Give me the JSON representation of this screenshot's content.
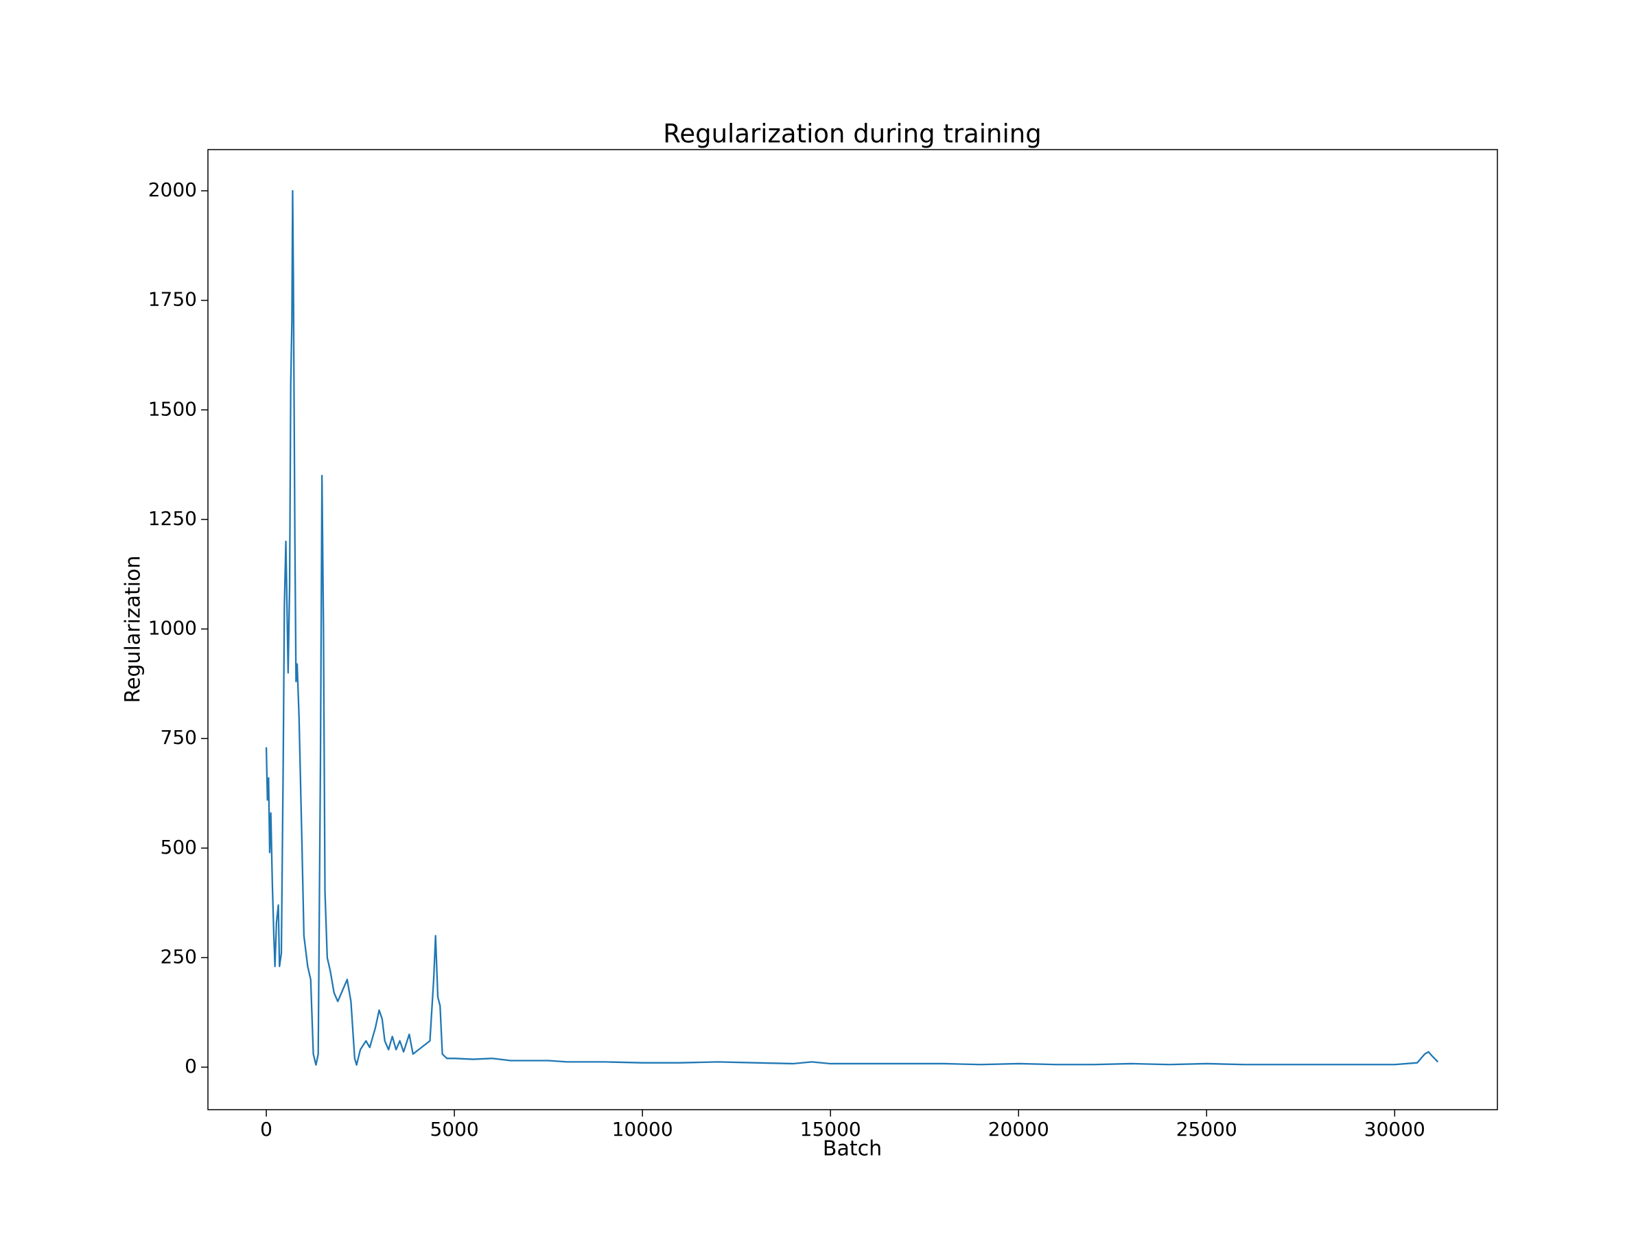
{
  "chart_data": {
    "type": "line",
    "title": "Regularization during training",
    "x_label": "Batch",
    "y_label": "Regularization",
    "color": "#1f77b4",
    "xlim": [
      -1552,
      32731
    ],
    "ylim": [
      -97,
      2094
    ],
    "xticks": [
      0,
      5000,
      10000,
      15000,
      20000,
      25000,
      30000
    ],
    "yticks": [
      0,
      250,
      500,
      750,
      1000,
      1250,
      1500,
      1750,
      2000
    ],
    "x": [
      0,
      30,
      60,
      90,
      120,
      160,
      200,
      230,
      270,
      320,
      350,
      400,
      450,
      480,
      520,
      560,
      580,
      620,
      650,
      680,
      700,
      720,
      740,
      760,
      790,
      820,
      870,
      950,
      1000,
      1100,
      1180,
      1250,
      1320,
      1380,
      1440,
      1480,
      1520,
      1560,
      1620,
      1700,
      1800,
      1900,
      2000,
      2150,
      2250,
      2350,
      2400,
      2500,
      2650,
      2750,
      2900,
      3000,
      3080,
      3150,
      3250,
      3350,
      3450,
      3550,
      3650,
      3800,
      3900,
      4050,
      4200,
      4350,
      4450,
      4500,
      4560,
      4620,
      4680,
      4800,
      5000,
      5500,
      6000,
      6500,
      7000,
      7500,
      8000,
      9000,
      10000,
      11000,
      12000,
      13000,
      14000,
      14500,
      15000,
      16000,
      17000,
      18000,
      19000,
      20000,
      21000,
      22000,
      23000,
      24000,
      25000,
      26000,
      27000,
      28000,
      29000,
      30000,
      30600,
      30800,
      30900,
      31000,
      31150
    ],
    "values": [
      730,
      610,
      660,
      490,
      580,
      420,
      300,
      230,
      330,
      370,
      230,
      260,
      700,
      1050,
      1200,
      1000,
      900,
      1100,
      1560,
      1700,
      2000,
      1800,
      1500,
      1200,
      880,
      920,
      800,
      500,
      300,
      230,
      200,
      30,
      5,
      30,
      700,
      1350,
      1000,
      400,
      250,
      220,
      170,
      150,
      170,
      200,
      150,
      20,
      5,
      40,
      60,
      45,
      90,
      130,
      110,
      60,
      40,
      70,
      40,
      60,
      35,
      75,
      30,
      40,
      50,
      60,
      200,
      300,
      160,
      140,
      30,
      20,
      20,
      18,
      20,
      15,
      15,
      15,
      12,
      12,
      10,
      10,
      12,
      10,
      8,
      12,
      8,
      8,
      8,
      8,
      6,
      8,
      6,
      6,
      8,
      6,
      8,
      6,
      6,
      6,
      6,
      6,
      10,
      30,
      35,
      25,
      12
    ]
  }
}
